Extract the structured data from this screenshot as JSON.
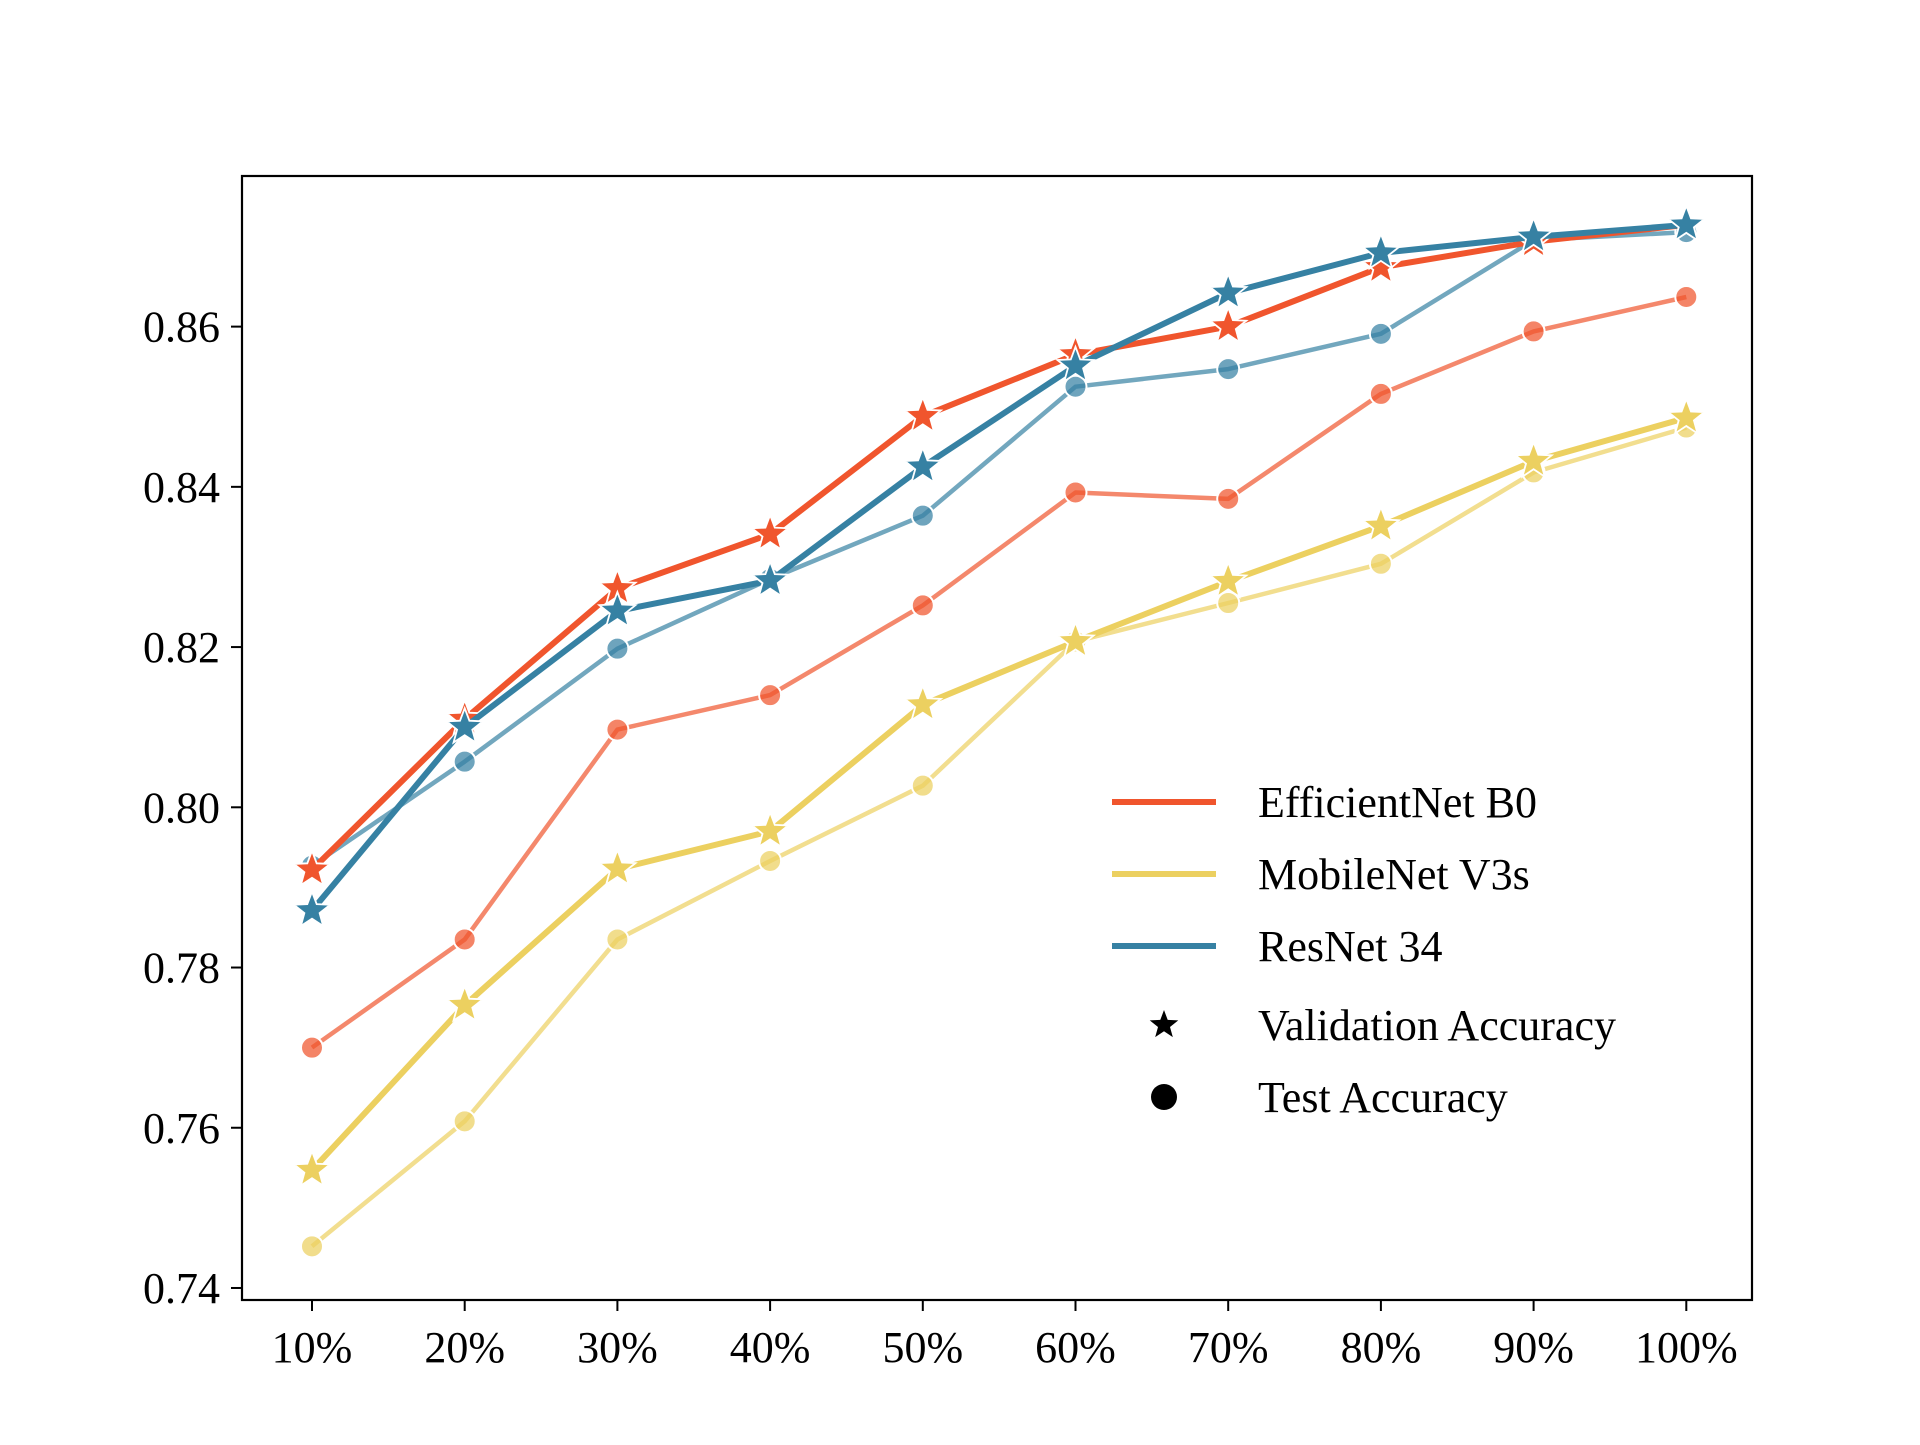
{
  "chart_data": {
    "type": "line",
    "title": "",
    "xlabel": "",
    "ylabel": "",
    "categories": [
      "10%",
      "20%",
      "30%",
      "40%",
      "50%",
      "60%",
      "70%",
      "80%",
      "90%",
      "100%"
    ],
    "ylim": [
      0.7385,
      0.8788
    ],
    "yticks": [
      0.74,
      0.76,
      0.78,
      0.8,
      0.82,
      0.84,
      0.86
    ],
    "ytick_labels": [
      "0.74",
      "0.76",
      "0.78",
      "0.80",
      "0.82",
      "0.84",
      "0.86"
    ],
    "grid": false,
    "legend_position": "lower-right",
    "series": [
      {
        "name": "EfficientNet B0",
        "color": "#f0552d",
        "validation": [
          0.7922,
          0.811,
          0.8273,
          0.8341,
          0.8488,
          0.8565,
          0.86,
          0.8674,
          0.8706,
          0.8727
        ],
        "test": [
          0.77,
          0.7835,
          0.8097,
          0.814,
          0.8252,
          0.8393,
          0.8385,
          0.8516,
          0.8594,
          0.8637
        ]
      },
      {
        "name": "MobileNet V3s",
        "color": "#ecd060",
        "validation": [
          0.7547,
          0.7753,
          0.7923,
          0.797,
          0.8128,
          0.8207,
          0.8282,
          0.8351,
          0.8432,
          0.8486
        ],
        "test": [
          0.7452,
          0.7608,
          0.7835,
          0.7933,
          0.8027,
          0.8207,
          0.8255,
          0.8304,
          0.8418,
          0.8474
        ]
      },
      {
        "name": "ResNet 34",
        "color": "#3681a3",
        "validation": [
          0.7871,
          0.81,
          0.8245,
          0.8283,
          0.8425,
          0.8551,
          0.8642,
          0.8692,
          0.8712,
          0.8727
        ],
        "test": [
          0.7927,
          0.8057,
          0.8198,
          0.8285,
          0.8364,
          0.8525,
          0.8547,
          0.8591,
          0.8708,
          0.8718
        ]
      }
    ],
    "marker_legend": [
      {
        "label": "Validation Accuracy",
        "marker": "star"
      },
      {
        "label": "Test Accuracy",
        "marker": "circle"
      }
    ]
  }
}
